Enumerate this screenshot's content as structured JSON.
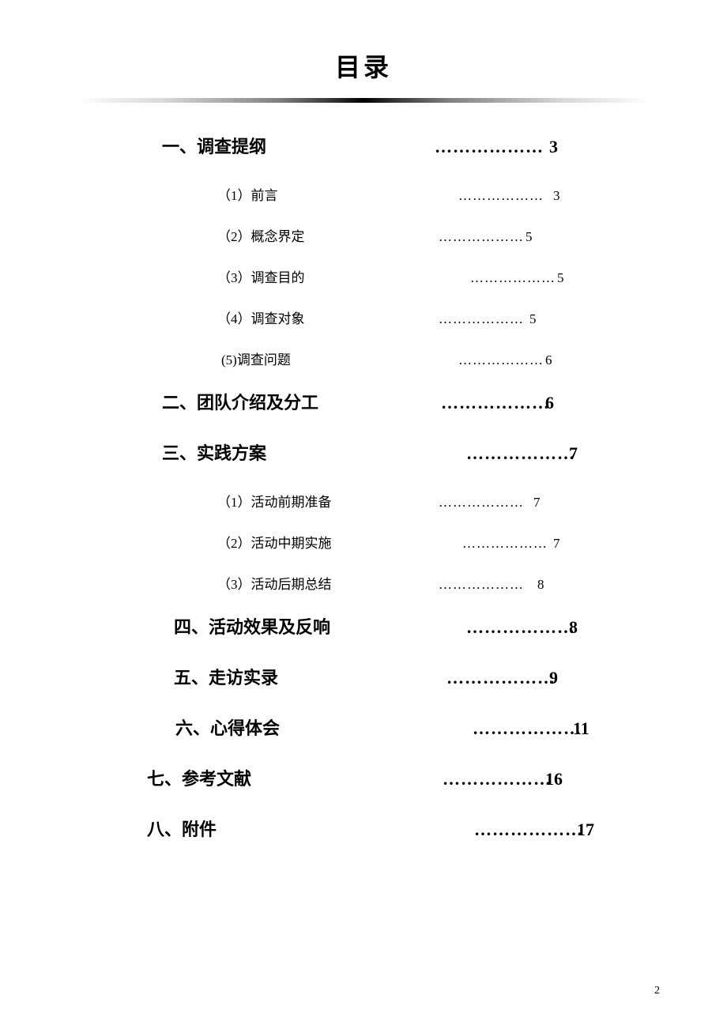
{
  "title": "目录",
  "page_number": "2",
  "dots": "………………",
  "entries": [
    {
      "label": "一、调查提纲",
      "page": "3",
      "level": 1,
      "label_indent": 105,
      "dots_indent": 450,
      "page_indent": 595
    },
    {
      "label": "（1）前言",
      "page": "3",
      "level": 2,
      "label_indent": 175,
      "dots_indent": 480,
      "page_indent": 600
    },
    {
      "label": "（2）概念界定",
      "page": "5",
      "level": 2,
      "label_indent": 175,
      "dots_indent": 455,
      "page_indent": 565
    },
    {
      "label": "（3）调查目的",
      "page": "5",
      "level": 2,
      "label_indent": 175,
      "dots_indent": 495,
      "page_indent": 605
    },
    {
      "label": "（4）调查对象",
      "page": "5",
      "level": 2,
      "label_indent": 175,
      "dots_indent": 455,
      "page_indent": 570
    },
    {
      "label": "(5)调查问题",
      "page": "6",
      "level": 2,
      "label_indent": 180,
      "dots_indent": 480,
      "page_indent": 590
    },
    {
      "label": "二、团队介绍及分工",
      "page": "6",
      "level": 1,
      "label_indent": 105,
      "dots_indent": 458,
      "page_indent": 590
    },
    {
      "label": "三、实践方案",
      "page": "7",
      "level": 1,
      "label_indent": 105,
      "dots_indent": 490,
      "page_indent": 620
    },
    {
      "label": "（1）活动前期准备",
      "page": "7",
      "level": 2,
      "label_indent": 175,
      "dots_indent": 455,
      "page_indent": 575
    },
    {
      "label": "（2）活动中期实施",
      "page": "7",
      "level": 2,
      "label_indent": 175,
      "dots_indent": 485,
      "page_indent": 600
    },
    {
      "label": "（3）活动后期总结",
      "page": "8",
      "level": 2,
      "label_indent": 175,
      "dots_indent": 455,
      "page_indent": 580
    },
    {
      "label": "四、活动效果及反响",
      "page": "8",
      "level": 1,
      "label_indent": 120,
      "dots_indent": 490,
      "page_indent": 620
    },
    {
      "label": "五、走访实录",
      "page": "9",
      "level": 1,
      "label_indent": 120,
      "dots_indent": 465,
      "page_indent": 595
    },
    {
      "label": "六、心得体会",
      "page": "11",
      "level": 1,
      "label_indent": 122,
      "dots_indent": 498,
      "page_indent": 625
    },
    {
      "label": "七、参考文献",
      "page": "16",
      "level": 1,
      "label_indent": 86,
      "dots_indent": 460,
      "page_indent": 590
    },
    {
      "label": "八、附件",
      "page": "17",
      "level": 1,
      "label_indent": 86,
      "dots_indent": 500,
      "page_indent": 630
    }
  ]
}
